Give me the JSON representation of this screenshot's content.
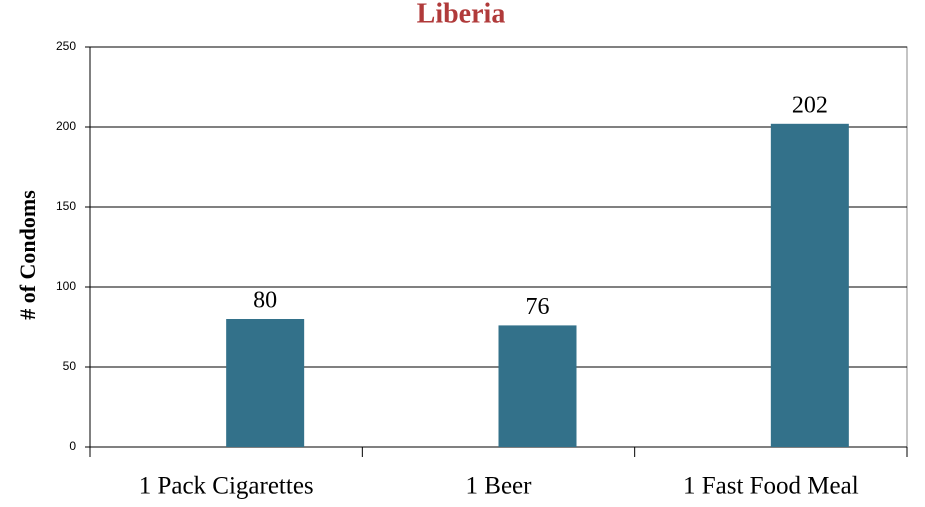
{
  "chart_data": {
    "type": "bar",
    "title": "Liberia",
    "y_label": "# of Condoms",
    "categories": [
      "1 Pack Cigarettes",
      "1 Beer",
      "1 Fast Food Meal"
    ],
    "values": [
      80,
      76,
      202
    ],
    "color": "#33718a",
    "ylim": [
      0,
      250
    ],
    "yticks": [
      0,
      50,
      100,
      150,
      200,
      250
    ],
    "grid": true
  }
}
